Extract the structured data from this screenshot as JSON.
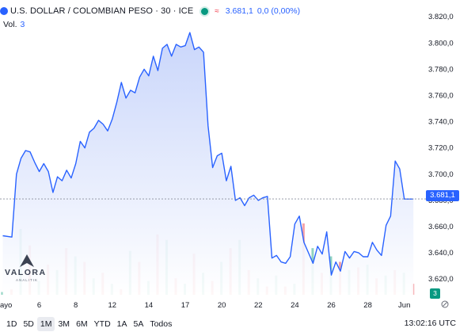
{
  "header": {
    "title": "U.S. DOLLAR / COLOMBIAN PESO · 30 · ICE",
    "price": "3.681,1",
    "change": "0,0 (0,00%)",
    "volume_label": "Vol.",
    "volume_value": "3"
  },
  "logo": {
    "name": "VALORA",
    "tagline": "ANALITIK"
  },
  "last_price_label": "3.681,1",
  "volume_badge": "3",
  "time_ranges": [
    "1D",
    "5D",
    "1M",
    "3M",
    "6M",
    "YTD",
    "1A",
    "5A",
    "Todos"
  ],
  "active_range": "1M",
  "clock": "13:02:16 UTC",
  "colors": {
    "line": "#2962ff",
    "area_top": "#c9d6fb",
    "area_bottom": "#ffffff",
    "vol_up": "#8fd3c2",
    "vol_down": "#f5a3a8"
  },
  "chart_data": {
    "type": "area",
    "title": "U.S. DOLLAR / COLOMBIAN PESO · 30 · ICE",
    "y_ticks": [
      "3.820,0",
      "3.800,0",
      "3.780,0",
      "3.760,0",
      "3.740,0",
      "3.720,0",
      "3.700,0",
      "3.680,0",
      "3.660,0",
      "3.640,0",
      "3.620,0"
    ],
    "y_tick_values": [
      3820,
      3800,
      3780,
      3760,
      3740,
      3720,
      3700,
      3680,
      3660,
      3640,
      3620
    ],
    "ylim": [
      3608,
      3828
    ],
    "x_ticks": [
      {
        "label": "ayo",
        "x": 0
      },
      {
        "label": "6",
        "x": 4
      },
      {
        "label": "8",
        "x": 8
      },
      {
        "label": "12",
        "x": 12
      },
      {
        "label": "14",
        "x": 16
      },
      {
        "label": "17",
        "x": 20
      },
      {
        "label": "20",
        "x": 24
      },
      {
        "label": "22",
        "x": 28
      },
      {
        "label": "24",
        "x": 32
      },
      {
        "label": "26",
        "x": 36
      },
      {
        "label": "28",
        "x": 40
      },
      {
        "label": "Jun",
        "x": 44
      }
    ],
    "xlim": [
      -0.3,
      45.5
    ],
    "current_value": 3681.1,
    "series": [
      {
        "x": [
          0,
          1,
          1.5,
          2,
          2.5,
          3,
          3.5,
          4,
          4.5,
          5,
          5.5,
          6,
          6.5,
          7,
          7.5,
          8,
          8.5,
          9,
          9.5,
          10,
          10.5,
          11,
          11.5,
          12,
          12.5,
          13,
          13.5,
          14,
          14.5,
          15,
          15.5,
          16,
          16.5,
          17,
          17.5,
          18,
          18.5,
          19,
          19.5,
          20,
          20.5,
          21,
          21.5,
          22,
          22.5,
          23,
          23.5,
          24,
          24.5,
          25,
          25.5,
          26,
          26.5,
          27,
          27.5,
          28,
          28.5,
          29,
          29.5,
          30,
          30.5,
          31,
          31.5,
          32,
          32.5,
          33,
          33.5,
          34,
          34.5,
          35,
          35.5,
          36,
          36.5,
          37,
          37.5,
          38,
          38.5,
          39,
          39.5,
          40,
          40.5,
          41,
          41.5,
          42,
          42.5,
          43,
          43.5,
          44,
          44.5,
          45
        ],
        "y": [
          3653,
          3652,
          3700,
          3712,
          3718,
          3717,
          3709,
          3702,
          3708,
          3702,
          3686,
          3698,
          3695,
          3703,
          3697,
          3708,
          3725,
          3720,
          3732,
          3735,
          3741,
          3738,
          3733,
          3742,
          3755,
          3770,
          3758,
          3764,
          3762,
          3774,
          3780,
          3775,
          3790,
          3779,
          3796,
          3799,
          3790,
          3799,
          3797,
          3798,
          3808,
          3795,
          3797,
          3793,
          3737,
          3705,
          3714,
          3716,
          3695,
          3706,
          3680,
          3682,
          3676,
          3682,
          3684,
          3680,
          3682,
          3683,
          3636,
          3638,
          3633,
          3632,
          3637,
          3662,
          3668,
          3648,
          3640,
          3632,
          3645,
          3639,
          3656,
          3623,
          3633,
          3626,
          3641,
          3636,
          3641,
          3640,
          3637,
          3637,
          3648,
          3642,
          3638,
          3661,
          3668,
          3710,
          3704,
          3681,
          3681,
          3681
        ]
      }
    ],
    "volume": {
      "x": [
        0,
        1,
        2,
        3,
        4,
        5,
        6,
        7,
        8,
        9,
        10,
        11,
        12,
        13,
        14,
        15,
        16,
        17,
        18,
        19,
        20,
        21,
        22,
        23,
        24,
        25,
        26,
        27,
        28,
        29,
        30,
        31,
        32,
        33,
        34,
        35,
        36,
        37,
        38,
        39,
        40,
        41,
        42,
        43,
        44,
        45
      ],
      "values": [
        1,
        2,
        24,
        18,
        5,
        11,
        9,
        17,
        14,
        12,
        6,
        8,
        4,
        2,
        16,
        12,
        5,
        22,
        20,
        6,
        4,
        15,
        8,
        5,
        12,
        17,
        20,
        9,
        6,
        3,
        7,
        3,
        4,
        26,
        17,
        8,
        14,
        12,
        9,
        10,
        11,
        6,
        7,
        9,
        8,
        4
      ],
      "direction": [
        "u",
        "d",
        "u",
        "d",
        "u",
        "d",
        "u",
        "d",
        "u",
        "d",
        "u",
        "d",
        "u",
        "d",
        "u",
        "d",
        "u",
        "d",
        "u",
        "d",
        "u",
        "d",
        "u",
        "d",
        "u",
        "d",
        "u",
        "d",
        "u",
        "d",
        "u",
        "d",
        "u",
        "d",
        "u",
        "d",
        "u",
        "d",
        "u",
        "d",
        "u",
        "d",
        "u",
        "d",
        "u",
        "d"
      ]
    },
    "grid": false,
    "legend": "none"
  }
}
